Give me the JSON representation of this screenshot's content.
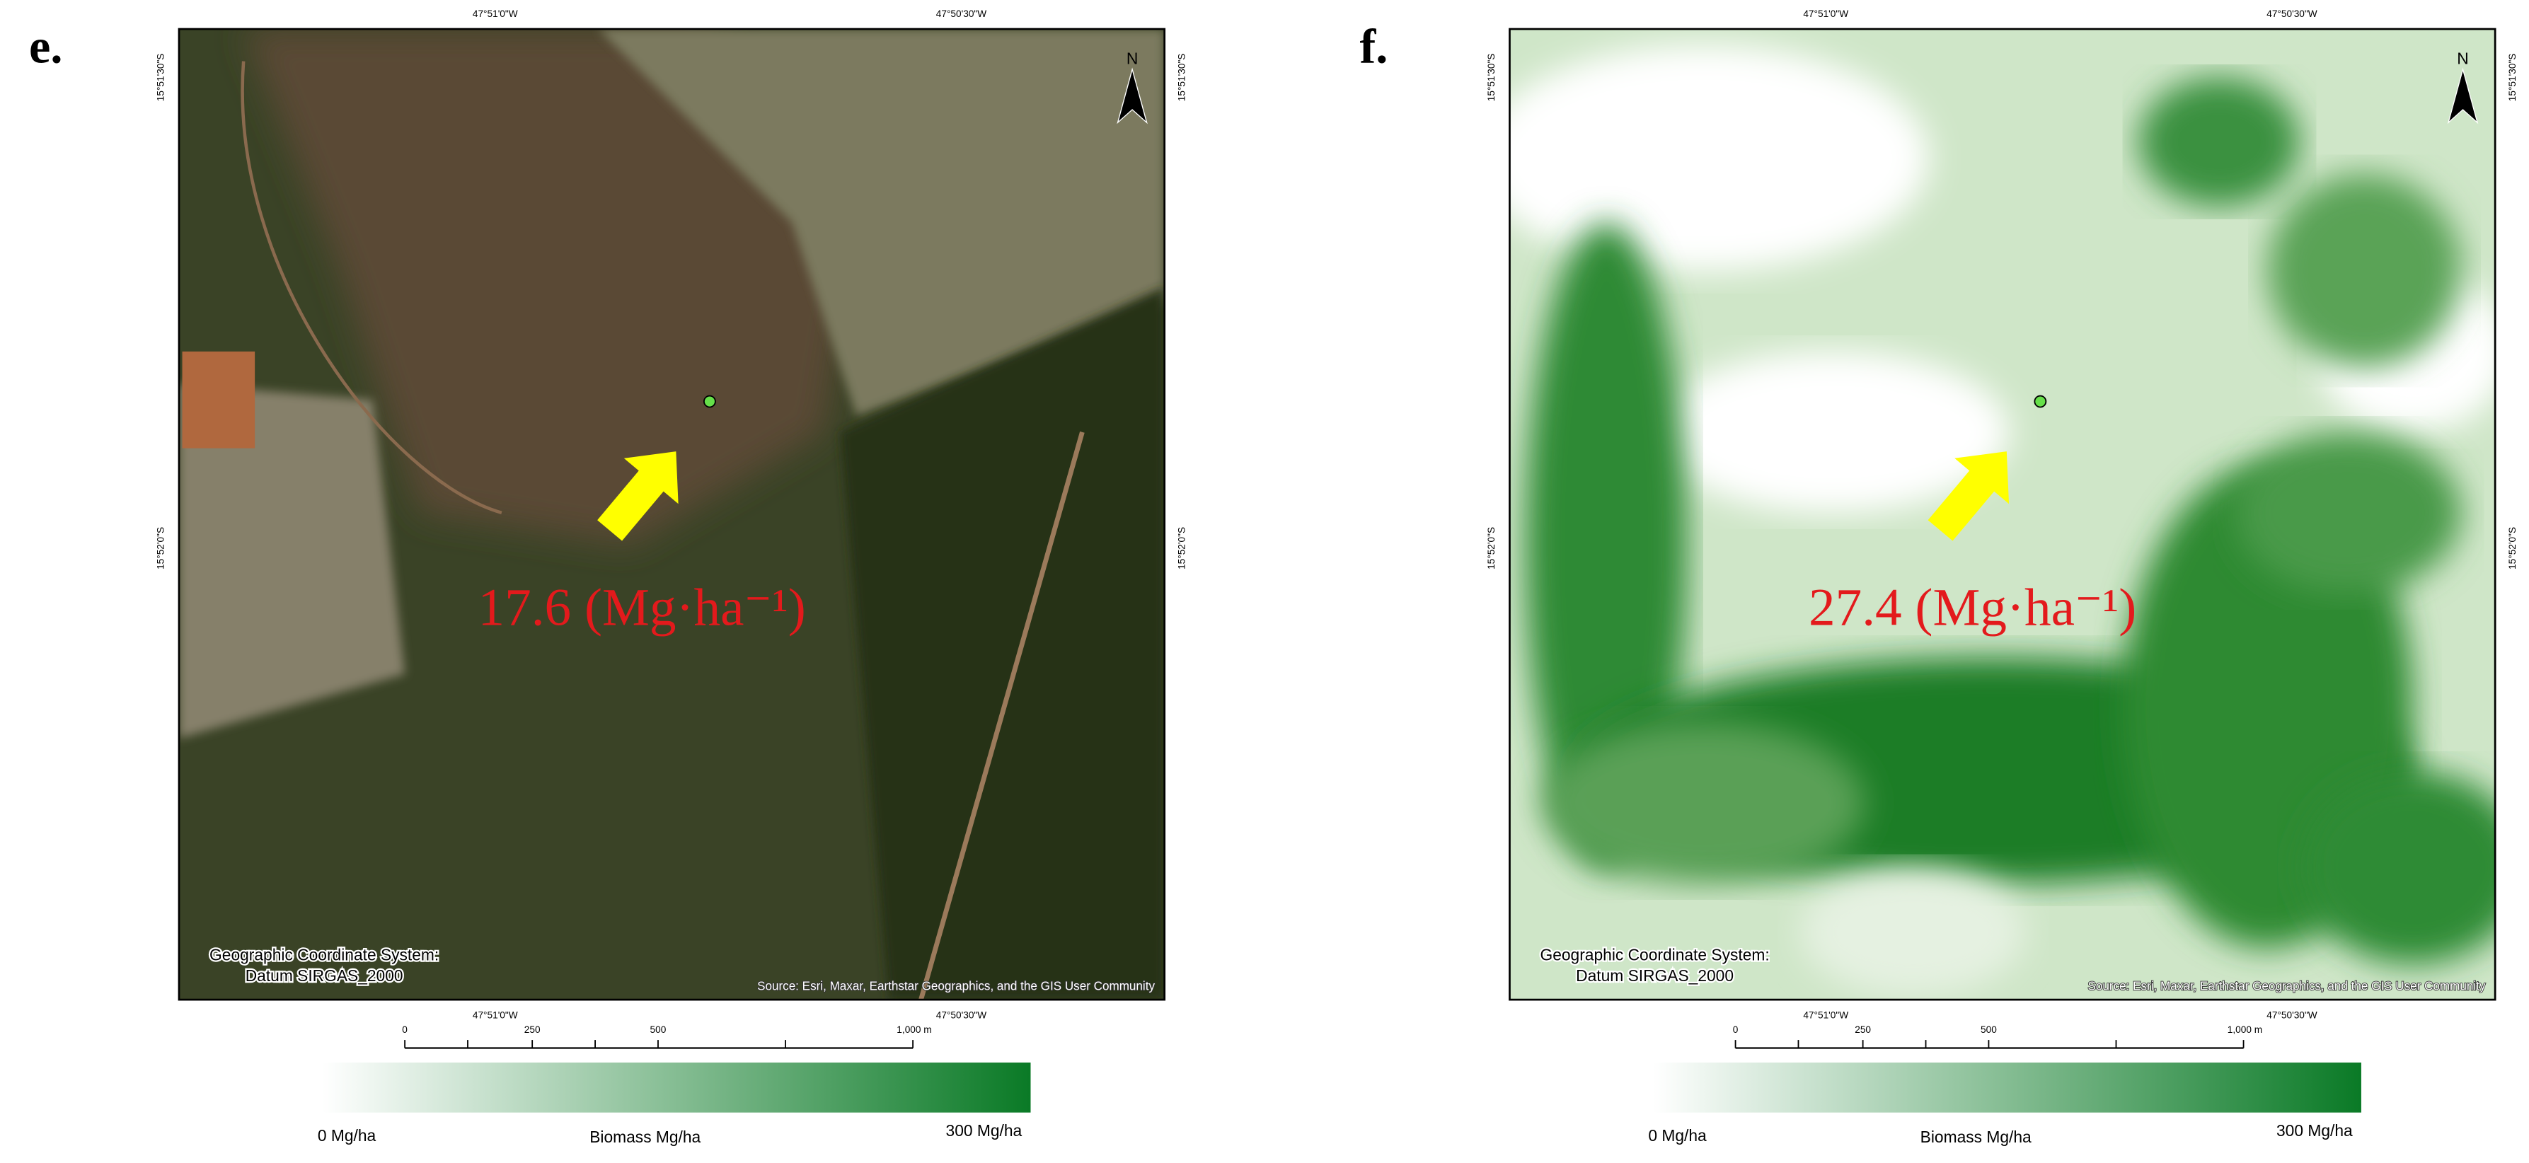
{
  "panels": [
    {
      "label": "e.",
      "top_ticks": [
        "47°51'0\"W",
        "47°50'30\"W"
      ],
      "left_ticks": [
        "15°51'30\"S",
        "15°52'0\"S"
      ],
      "right_ticks": [
        "15°51'30\"S",
        "15°52'0\"S"
      ],
      "bottom_ticks": [
        "47°51'0\"W",
        "47°50'30\"W"
      ],
      "north": "N",
      "value_text": "17.6 (Mg·ha⁻¹)",
      "crs": [
        "Geographic Coordinate System:",
        "Datum SIRGAS_2000"
      ],
      "source": "Source: Esri, Maxar, Earthstar Geographics, and the GIS User Community",
      "scale_labels": [
        "0",
        "250",
        "500",
        "1,000 m"
      ],
      "legend": {
        "min": "0 Mg/ha",
        "title": "Biomass Mg/ha",
        "max": "300 Mg/ha"
      }
    },
    {
      "label": "f.",
      "top_ticks": [
        "47°51'0\"W",
        "47°50'30\"W"
      ],
      "left_ticks": [
        "15°51'30\"S",
        "15°52'0\"S"
      ],
      "right_ticks": [
        "15°51'30\"S",
        "15°52'0\"S"
      ],
      "bottom_ticks": [
        "47°51'0\"W",
        "47°50'30\"W"
      ],
      "north": "N",
      "value_text": "27.4 (Mg·ha⁻¹)",
      "crs": [
        "Geographic Coordinate System:",
        "Datum SIRGAS_2000"
      ],
      "source": "Source: Esri, Maxar, Earthstar Geographics, and the GIS User Community",
      "scale_labels": [
        "0",
        "250",
        "500",
        "1,000 m"
      ],
      "legend": {
        "min": "0 Mg/ha",
        "title": "Biomass Mg/ha",
        "max": "300 Mg/ha"
      }
    }
  ]
}
